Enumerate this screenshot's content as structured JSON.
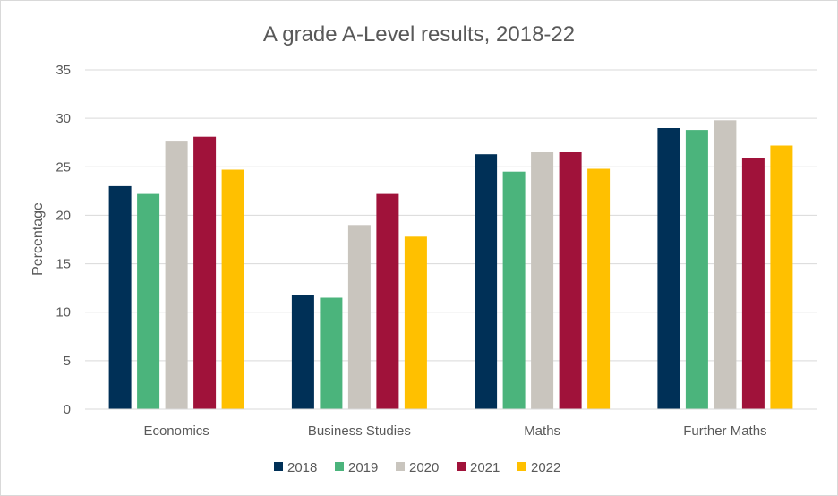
{
  "chart_data": {
    "type": "bar",
    "title": "A grade A-Level results, 2018-22",
    "xlabel": "",
    "ylabel": "Percentage",
    "ylim": [
      0,
      35
    ],
    "yticks": [
      0,
      5,
      10,
      15,
      20,
      25,
      30,
      35
    ],
    "categories": [
      "Economics",
      "Business Studies",
      "Maths",
      "Further Maths"
    ],
    "series": [
      {
        "name": "2018",
        "color": "#003057",
        "values": [
          23.0,
          11.8,
          26.3,
          29.0
        ]
      },
      {
        "name": "2019",
        "color": "#4bb47c",
        "values": [
          22.2,
          11.5,
          24.5,
          28.8
        ]
      },
      {
        "name": "2020",
        "color": "#c9c5be",
        "values": [
          27.6,
          19.0,
          26.5,
          29.8
        ]
      },
      {
        "name": "2021",
        "color": "#a0123a",
        "values": [
          28.1,
          22.2,
          26.5,
          25.9
        ]
      },
      {
        "name": "2022",
        "color": "#ffc000",
        "values": [
          24.7,
          17.8,
          24.8,
          27.2
        ]
      }
    ],
    "grid": true,
    "legend_position": "bottom"
  }
}
